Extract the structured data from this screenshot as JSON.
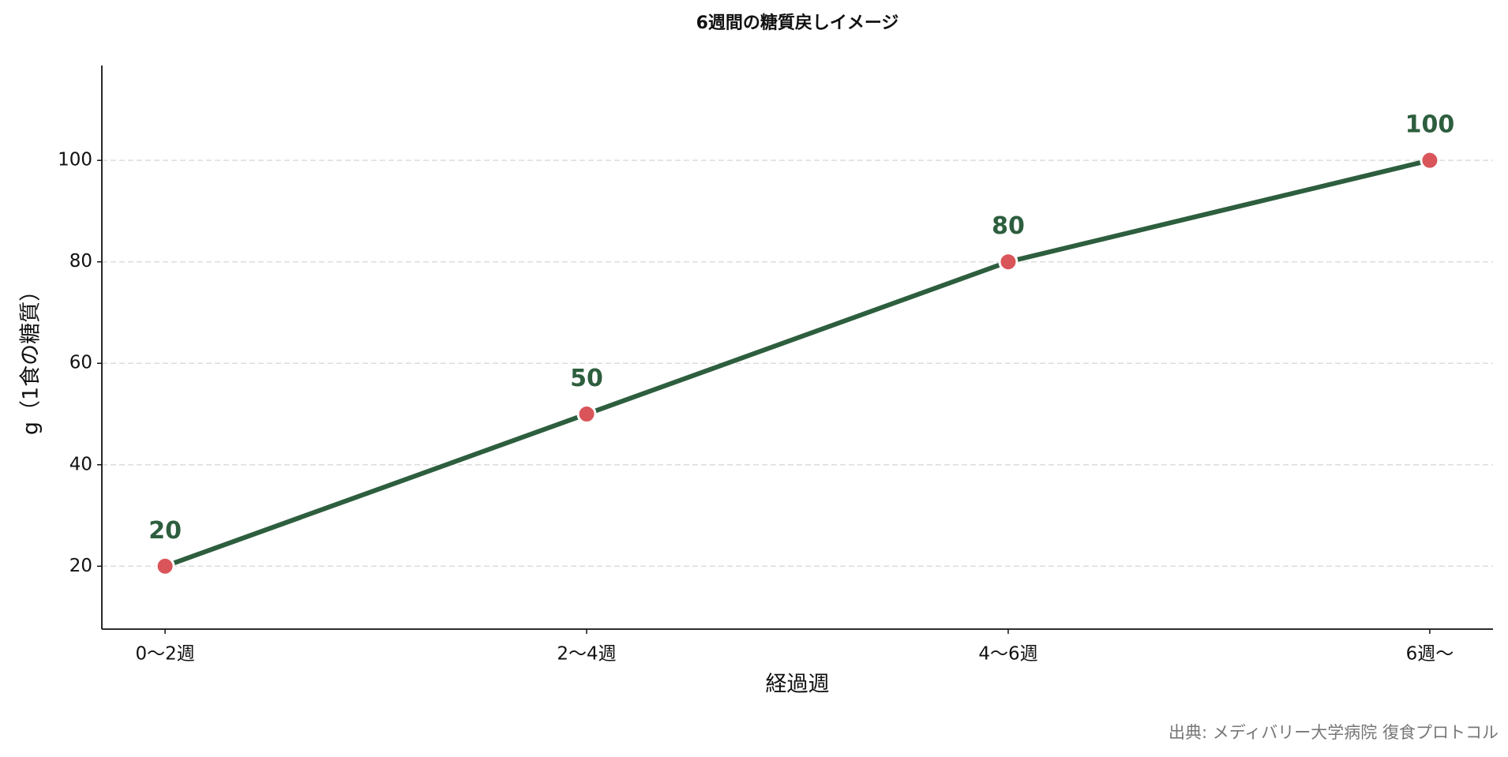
{
  "chart_data": {
    "type": "line",
    "title": "6週間の糖質戻しイメージ",
    "x_label": "経過週",
    "y_label": "g（1食の糖質）",
    "categories": [
      "0〜2週",
      "2〜4週",
      "4〜6週",
      "6週〜"
    ],
    "series": [
      {
        "name": "糖質",
        "color": "#2d5e3e",
        "marker_color": "#d9555a",
        "values": [
          20,
          50,
          80,
          100
        ]
      }
    ],
    "ylim": [
      7.6,
      118.7
    ],
    "yticks": [
      20,
      40,
      60,
      80,
      100
    ],
    "grid": true,
    "source": "出典: メディバリー大学病院 復食プロトコル"
  }
}
